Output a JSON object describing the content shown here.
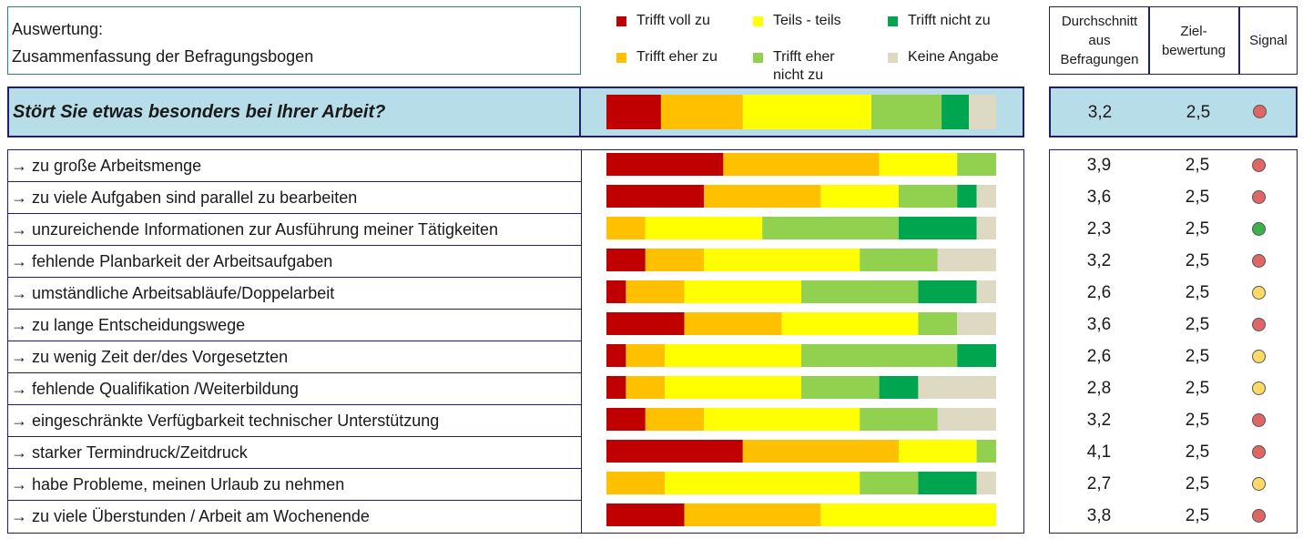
{
  "header": {
    "title_line1": "Auswertung:",
    "title_line2": "Zusammenfassung der Befragungsbogen",
    "col_avg": "Durchschnitt aus Befragungen",
    "col_target": "Ziel-bewertung",
    "col_signal": "Signal"
  },
  "legend": [
    {
      "label": "Trifft voll zu",
      "color": "#c00000"
    },
    {
      "label": "Teils - teils",
      "color": "#ffff00"
    },
    {
      "label": "Trifft nicht zu",
      "color": "#00a550"
    },
    {
      "label": "Trifft eher zu",
      "color": "#ffc000"
    },
    {
      "label": "Trifft eher nicht zu",
      "color": "#92d050"
    },
    {
      "label": "Keine Angabe",
      "color": "#ddd9c3"
    }
  ],
  "signal_colors": {
    "red": "#e06666",
    "yellow": "#ffd966",
    "green": "#3cb04a"
  },
  "question": {
    "text": "Stört Sie etwas besonders bei Ihrer Arbeit?",
    "avg": "3,2",
    "target": "2,5",
    "signal": "red"
  },
  "items": [
    {
      "label": "→ zu große Arbeitsmenge",
      "avg": "3,9",
      "target": "2,5",
      "signal": "red"
    },
    {
      "label": "→ zu viele Aufgaben sind parallel zu bearbeiten",
      "avg": "3,6",
      "target": "2,5",
      "signal": "red"
    },
    {
      "label": "→ unzureichende Informationen zur Ausführung meiner Tätigkeiten",
      "avg": "2,3",
      "target": "2,5",
      "signal": "green"
    },
    {
      "label": "→ fehlende Planbarkeit der Arbeitsaufgaben",
      "avg": "3,2",
      "target": "2,5",
      "signal": "red"
    },
    {
      "label": "→ umständliche Arbeitsabläufe/Doppelarbeit",
      "avg": "2,6",
      "target": "2,5",
      "signal": "yellow"
    },
    {
      "label": "→ zu lange Entscheidungswege",
      "avg": "3,6",
      "target": "2,5",
      "signal": "red"
    },
    {
      "label": "→ zu wenig Zeit der/des Vorgesetzten",
      "avg": "2,6",
      "target": "2,5",
      "signal": "yellow"
    },
    {
      "label": "→ fehlende Qualifikation /Weiterbildung",
      "avg": "2,8",
      "target": "2,5",
      "signal": "yellow"
    },
    {
      "label": "→ eingeschränkte Verfügbarkeit technischer Unterstützung",
      "avg": "3,2",
      "target": "2,5",
      "signal": "red"
    },
    {
      "label": "→ starker Termindruck/Zeitdruck",
      "avg": "4,1",
      "target": "2,5",
      "signal": "red"
    },
    {
      "label": "→ habe Probleme, meinen Urlaub zu nehmen",
      "avg": "2,7",
      "target": "2,5",
      "signal": "yellow"
    },
    {
      "label": "→ zu viele Überstunden / Arbeit am Wochenende",
      "avg": "3,8",
      "target": "2,5",
      "signal": "red"
    }
  ],
  "chart_data": {
    "type": "bar",
    "orientation": "horizontal",
    "stacked": true,
    "percent_scale": [
      0,
      100
    ],
    "categories": [
      "Stört Sie etwas besonders bei Ihrer Arbeit?",
      "→ zu große Arbeitsmenge",
      "→ zu viele Aufgaben sind parallel zu bearbeiten",
      "→ unzureichende Informationen zur Ausführung meiner Tätigkeiten",
      "→ fehlende Planbarkeit der Arbeitsaufgaben",
      "→ umständliche Arbeitsabläufe/Doppelarbeit",
      "→ zu lange Entscheidungswege",
      "→ zu wenig Zeit der/des Vorgesetzten",
      "→ fehlende Qualifikation /Weiterbildung",
      "→ eingeschränkte Verfügbarkeit technischer Unterstützung",
      "→ starker Termindruck/Zeitdruck",
      "→ habe Probleme, meinen Urlaub zu nehmen",
      "→ zu viele Überstunden / Arbeit am Wochenende"
    ],
    "series": [
      {
        "name": "Trifft voll zu",
        "color": "#c00000",
        "values": [
          14,
          30,
          25,
          0,
          10,
          5,
          20,
          5,
          5,
          10,
          35,
          0,
          20
        ]
      },
      {
        "name": "Trifft eher zu",
        "color": "#ffc000",
        "values": [
          21,
          40,
          30,
          10,
          15,
          15,
          25,
          10,
          10,
          15,
          40,
          15,
          35
        ]
      },
      {
        "name": "Teils - teils",
        "color": "#ffff00",
        "values": [
          33,
          20,
          20,
          30,
          40,
          30,
          35,
          35,
          35,
          40,
          20,
          50,
          45
        ]
      },
      {
        "name": "Trifft eher nicht zu",
        "color": "#92d050",
        "values": [
          18,
          10,
          15,
          35,
          20,
          30,
          10,
          40,
          20,
          20,
          5,
          15,
          0
        ]
      },
      {
        "name": "Trifft nicht zu",
        "color": "#00a550",
        "values": [
          7,
          0,
          5,
          20,
          0,
          15,
          0,
          10,
          10,
          0,
          0,
          15,
          0
        ]
      },
      {
        "name": "Keine Angabe",
        "color": "#ddd9c3",
        "values": [
          7,
          0,
          5,
          5,
          15,
          5,
          10,
          0,
          20,
          15,
          0,
          5,
          0
        ]
      }
    ]
  }
}
